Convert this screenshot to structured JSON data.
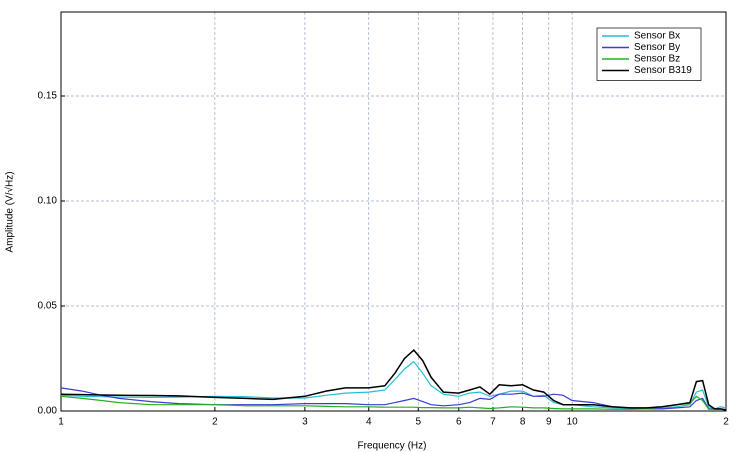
{
  "chart_data": {
    "type": "line",
    "x_label": "Frequency (Hz)",
    "y_label": "Amplitude (V/√Hz)",
    "log_x": true,
    "grid": true,
    "legend": "upper right",
    "xlim": [
      1,
      20
    ],
    "xticks": [
      1,
      2,
      3,
      4,
      5,
      6,
      7,
      8,
      9,
      10,
      {
        "value": 20,
        "label": "2"
      }
    ],
    "ylim": [
      0,
      0.19
    ],
    "yticks": [
      {
        "value": 0,
        "label": "0.00"
      },
      {
        "value": 0.05,
        "label": "0.05"
      },
      {
        "value": 0.1,
        "label": "0.10"
      },
      {
        "value": 0.15,
        "label": "0.15"
      }
    ],
    "x": [
      1,
      1.1,
      1.2,
      1.3,
      1.5,
      1.7,
      2,
      2.3,
      2.6,
      3,
      3.3,
      3.6,
      4,
      4.3,
      4.5,
      4.7,
      4.9,
      5.1,
      5.3,
      5.6,
      6,
      6.3,
      6.6,
      6.9,
      7.2,
      7.6,
      8,
      8.4,
      8.8,
      9.2,
      9.6,
      10,
      11,
      12,
      13,
      14,
      15,
      16,
      17,
      17.5,
      18,
      18.5,
      19,
      19.5,
      20
    ],
    "series": [
      {
        "name": "Sensor Bx",
        "color": "#22c0d4",
        "values": [
          0.0075,
          0.007,
          0.0068,
          0.0066,
          0.0065,
          0.0066,
          0.007,
          0.0068,
          0.0062,
          0.0062,
          0.0075,
          0.0085,
          0.009,
          0.01,
          0.015,
          0.02,
          0.0235,
          0.018,
          0.012,
          0.008,
          0.007,
          0.0085,
          0.009,
          0.007,
          0.008,
          0.0095,
          0.0095,
          0.007,
          0.0075,
          0.004,
          0.003,
          0.003,
          0.002,
          0.0015,
          0.001,
          0.001,
          0.0015,
          0.002,
          0.003,
          0.009,
          0.01,
          0.002,
          0.001,
          0.002,
          0.0015
        ]
      },
      {
        "name": "Sensor By",
        "color": "#3c3cd0",
        "values": [
          0.011,
          0.0095,
          0.0075,
          0.006,
          0.0045,
          0.0035,
          0.003,
          0.003,
          0.003,
          0.0035,
          0.0035,
          0.0035,
          0.003,
          0.003,
          0.004,
          0.005,
          0.006,
          0.0045,
          0.003,
          0.0025,
          0.003,
          0.004,
          0.006,
          0.0055,
          0.008,
          0.008,
          0.0085,
          0.007,
          0.007,
          0.008,
          0.0075,
          0.005,
          0.004,
          0.002,
          0.0015,
          0.001,
          0.001,
          0.0015,
          0.002,
          0.005,
          0.006,
          0.001,
          0.001,
          0.001,
          0.0005
        ]
      },
      {
        "name": "Sensor Bz",
        "color": "#22b022",
        "values": [
          0.007,
          0.006,
          0.005,
          0.004,
          0.003,
          0.003,
          0.003,
          0.0025,
          0.0025,
          0.0025,
          0.0022,
          0.002,
          0.002,
          0.0018,
          0.0018,
          0.0018,
          0.0018,
          0.0016,
          0.0016,
          0.0015,
          0.0015,
          0.0018,
          0.0015,
          0.0012,
          0.0015,
          0.002,
          0.0018,
          0.0015,
          0.0015,
          0.0012,
          0.001,
          0.001,
          0.001,
          0.0008,
          0.0008,
          0.001,
          0.002,
          0.003,
          0.0035,
          0.007,
          0.005,
          0.0008,
          0.0008,
          0.0008,
          0.0005
        ]
      },
      {
        "name": "Sensor B319",
        "color": "#000000",
        "values": [
          0.008,
          0.0078,
          0.0076,
          0.0075,
          0.0074,
          0.0072,
          0.0065,
          0.006,
          0.0055,
          0.007,
          0.0095,
          0.011,
          0.011,
          0.012,
          0.018,
          0.025,
          0.029,
          0.024,
          0.016,
          0.009,
          0.0085,
          0.01,
          0.0115,
          0.008,
          0.0125,
          0.012,
          0.0125,
          0.01,
          0.009,
          0.005,
          0.003,
          0.003,
          0.003,
          0.002,
          0.0015,
          0.0015,
          0.002,
          0.003,
          0.004,
          0.014,
          0.0145,
          0.003,
          0.001,
          0.001,
          0.0005
        ]
      }
    ]
  }
}
